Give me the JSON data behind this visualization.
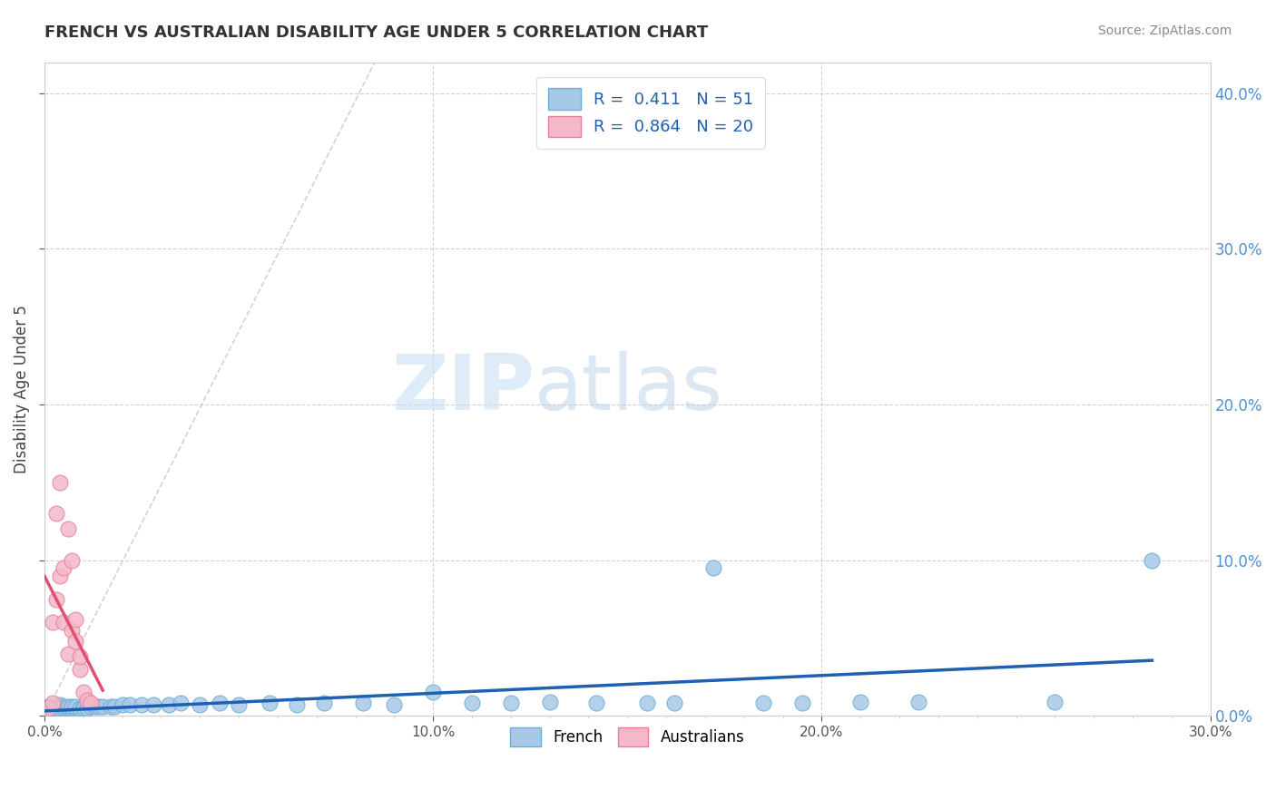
{
  "title": "FRENCH VS AUSTRALIAN DISABILITY AGE UNDER 5 CORRELATION CHART",
  "source": "Source: ZipAtlas.com",
  "ylabel": "Disability Age Under 5",
  "xlim": [
    0.0,
    0.3
  ],
  "ylim": [
    0.0,
    0.42
  ],
  "french_color": "#a8c8e8",
  "french_edge": "#6aaed6",
  "australian_color": "#f4b8c8",
  "australian_edge": "#e87fa0",
  "trendline_french_color": "#2060b0",
  "trendline_australian_color": "#e05070",
  "diag_color": "#cccccc",
  "right_label_color": "#5090d0",
  "legend_label_color": "#2060b0",
  "french_x": [
    0.001,
    0.002,
    0.003,
    0.003,
    0.004,
    0.004,
    0.005,
    0.005,
    0.006,
    0.006,
    0.007,
    0.007,
    0.008,
    0.009,
    0.01,
    0.01,
    0.011,
    0.012,
    0.013,
    0.014,
    0.015,
    0.017,
    0.018,
    0.02,
    0.022,
    0.025,
    0.028,
    0.032,
    0.035,
    0.04,
    0.045,
    0.05,
    0.058,
    0.065,
    0.072,
    0.082,
    0.09,
    0.1,
    0.11,
    0.12,
    0.13,
    0.142,
    0.155,
    0.162,
    0.172,
    0.185,
    0.195,
    0.21,
    0.225,
    0.26,
    0.285
  ],
  "french_y": [
    0.006,
    0.005,
    0.006,
    0.005,
    0.007,
    0.005,
    0.005,
    0.006,
    0.005,
    0.006,
    0.005,
    0.006,
    0.006,
    0.005,
    0.006,
    0.005,
    0.005,
    0.006,
    0.006,
    0.006,
    0.006,
    0.006,
    0.006,
    0.007,
    0.007,
    0.007,
    0.007,
    0.007,
    0.008,
    0.007,
    0.008,
    0.007,
    0.008,
    0.007,
    0.008,
    0.008,
    0.007,
    0.015,
    0.008,
    0.008,
    0.009,
    0.008,
    0.008,
    0.008,
    0.095,
    0.008,
    0.008,
    0.009,
    0.009,
    0.009,
    0.1
  ],
  "australian_x": [
    0.001,
    0.002,
    0.002,
    0.003,
    0.003,
    0.004,
    0.004,
    0.005,
    0.005,
    0.006,
    0.006,
    0.007,
    0.007,
    0.008,
    0.008,
    0.009,
    0.009,
    0.01,
    0.011,
    0.012
  ],
  "australian_y": [
    0.005,
    0.008,
    0.06,
    0.075,
    0.13,
    0.09,
    0.15,
    0.06,
    0.095,
    0.12,
    0.04,
    0.055,
    0.1,
    0.048,
    0.062,
    0.03,
    0.038,
    0.015,
    0.01,
    0.008
  ]
}
